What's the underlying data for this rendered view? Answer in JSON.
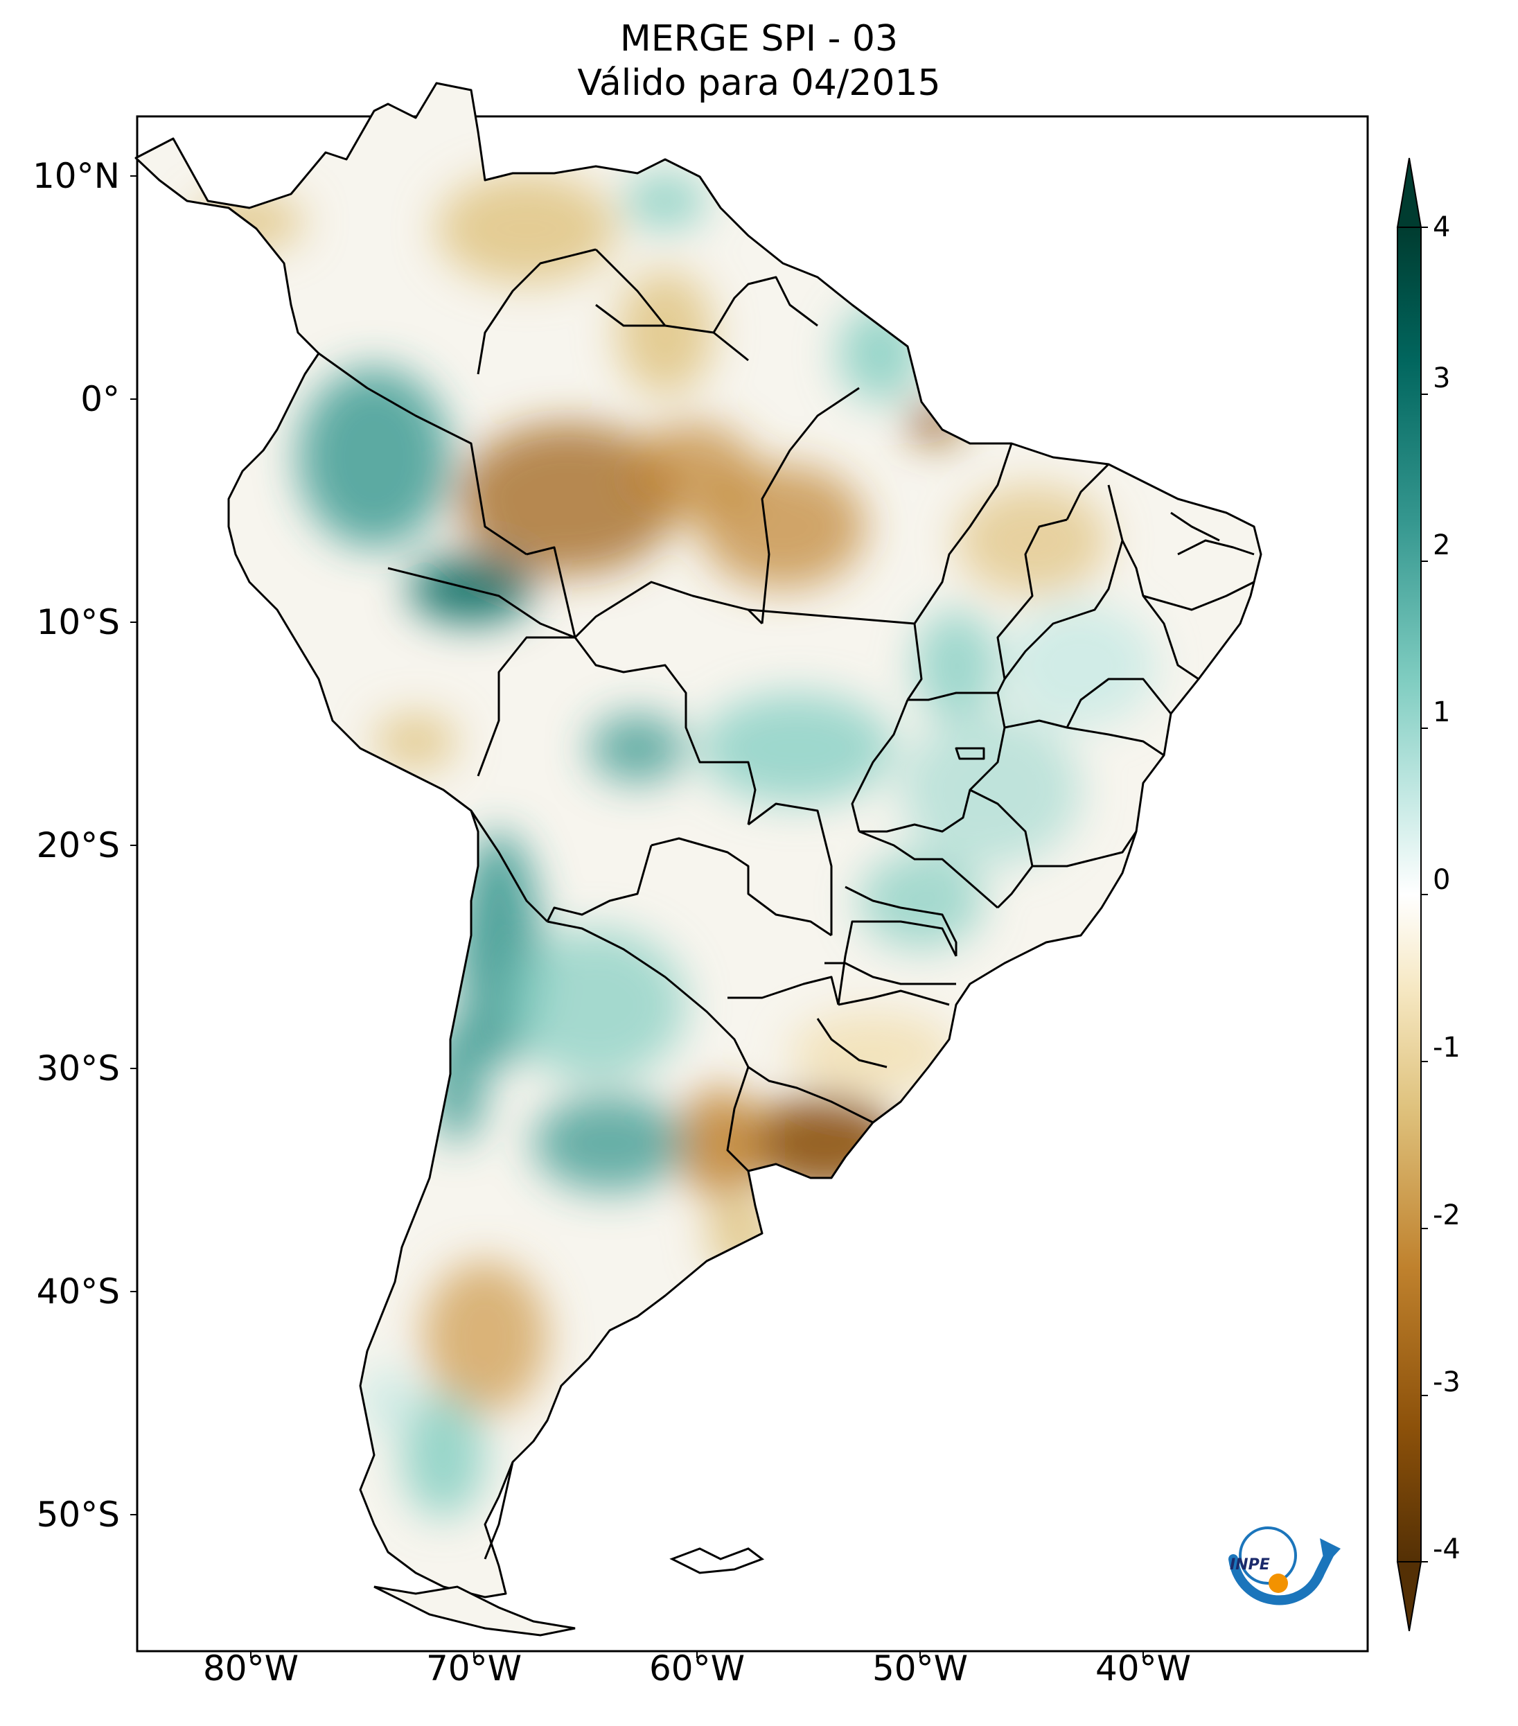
{
  "title": {
    "line1": "MERGE   SPI - 03",
    "line2": "Válido para 04/2015"
  },
  "axes": {
    "lat_ticks": [
      "10°N",
      "0°",
      "10°S",
      "20°S",
      "30°S",
      "40°S",
      "50°S"
    ],
    "lon_ticks": [
      "80°W",
      "70°W",
      "60°W",
      "50°W",
      "40°W"
    ],
    "lon_range_deg": [
      -85,
      -30
    ],
    "lat_range_deg": [
      -56,
      13
    ]
  },
  "colorbar": {
    "ticks": [
      "4",
      "3",
      "2",
      "1",
      "0",
      "-1",
      "-2",
      "-3",
      "-4"
    ],
    "min": -4,
    "max": 4,
    "extend": "both",
    "colormap": "BrBG",
    "colors": [
      "#543005",
      "#8c510a",
      "#bf812d",
      "#dfc27d",
      "#f6e8c3",
      "#ffffff",
      "#c7eae5",
      "#80cdc1",
      "#35978f",
      "#01665e",
      "#003c30"
    ]
  },
  "map": {
    "region": "South America",
    "variable": "SPI - 03",
    "dry_areas": [
      "Central Amazon",
      "Northern Pará / Amapá",
      "Rio Grande do Sul",
      "Uruguay",
      "Buenos Aires coast",
      "Northern Patagonia",
      "Caribbean coast"
    ],
    "wet_areas": [
      "Northern Peru / Ecuador",
      "Acre / Southern Amazonas",
      "Northern Chile / Argentine Andes",
      "Central Argentina",
      "Mato Grosso",
      "Goiás / Minas Gerais",
      "Southern Patagonia"
    ]
  },
  "logo": {
    "text": "INPE"
  }
}
